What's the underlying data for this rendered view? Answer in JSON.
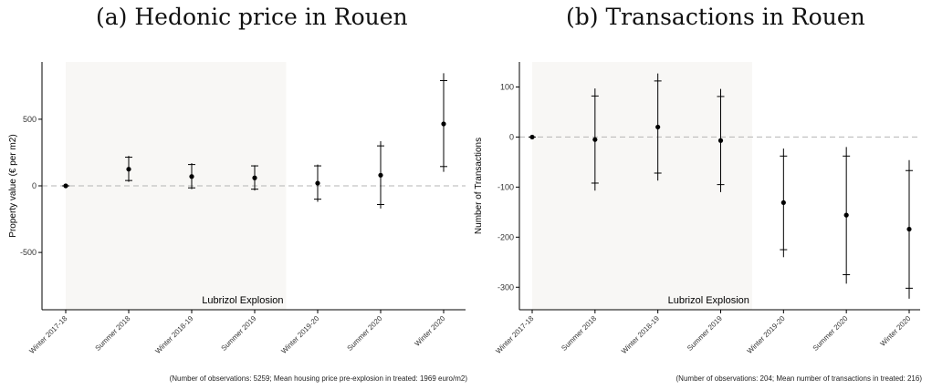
{
  "chart_data": [
    {
      "type": "errorbar",
      "title": "(a) Hedonic price in Rouen",
      "xlabel": "",
      "ylabel": "Property value (€ per m2)",
      "categories": [
        "Winter 2017-18",
        "Summer 2018",
        "Winter 2018-19",
        "Summer 2019",
        "Winter 2019-20",
        "Summer 2020",
        "Winter 2020"
      ],
      "values": [
        0,
        125,
        70,
        60,
        20,
        80,
        465
      ],
      "ci90": [
        [
          0,
          0
        ],
        [
          40,
          215
        ],
        [
          -15,
          160
        ],
        [
          -25,
          150
        ],
        [
          -100,
          150
        ],
        [
          -140,
          300
        ],
        [
          145,
          790
        ]
      ],
      "ci95": [
        [
          0,
          0
        ],
        [
          30,
          225
        ],
        [
          -25,
          170
        ],
        [
          -35,
          155
        ],
        [
          -120,
          160
        ],
        [
          -170,
          335
        ],
        [
          105,
          845
        ]
      ],
      "ylim": [
        -930,
        930
      ],
      "yticks": [
        -500,
        0,
        500
      ],
      "reference_line": 0,
      "shaded_region": {
        "from": "Winter 2017-18",
        "to": "Summer 2019",
        "label": "Lubrizol Explosion"
      },
      "grid": false,
      "note": "(Number of observations: 5259; Mean housing price pre-explosion in treated: 1969 euro/m2)"
    },
    {
      "type": "errorbar",
      "title": "(b) Transactions in Rouen",
      "xlabel": "",
      "ylabel": "Number of Transactions",
      "categories": [
        "Winter 2017-18",
        "Summer 2018",
        "Winter 2018-19",
        "Summer 2019",
        "Winter 2019-20",
        "Summer 2020",
        "Winter 2020"
      ],
      "values": [
        0,
        -5,
        20,
        -7,
        -131,
        -156,
        -184
      ],
      "ci90": [
        [
          0,
          0
        ],
        [
          -92,
          82
        ],
        [
          -72,
          112
        ],
        [
          -95,
          81
        ],
        [
          -225,
          -38
        ],
        [
          -275,
          -38
        ],
        [
          -302,
          -67
        ]
      ],
      "ci95": [
        [
          0,
          0
        ],
        [
          -107,
          97
        ],
        [
          -87,
          127
        ],
        [
          -110,
          96
        ],
        [
          -240,
          -23
        ],
        [
          -293,
          -20
        ],
        [
          -323,
          -46
        ]
      ],
      "ylim": [
        -345,
        150
      ],
      "yticks": [
        -300,
        -200,
        -100,
        0,
        100
      ],
      "reference_line": 0,
      "shaded_region": {
        "from": "Winter 2017-18",
        "to": "Summer 2019",
        "label": "Lubrizol Explosion"
      },
      "grid": false,
      "note": "(Number of observations: 204; Mean number of transactions in treated: 216)"
    }
  ]
}
